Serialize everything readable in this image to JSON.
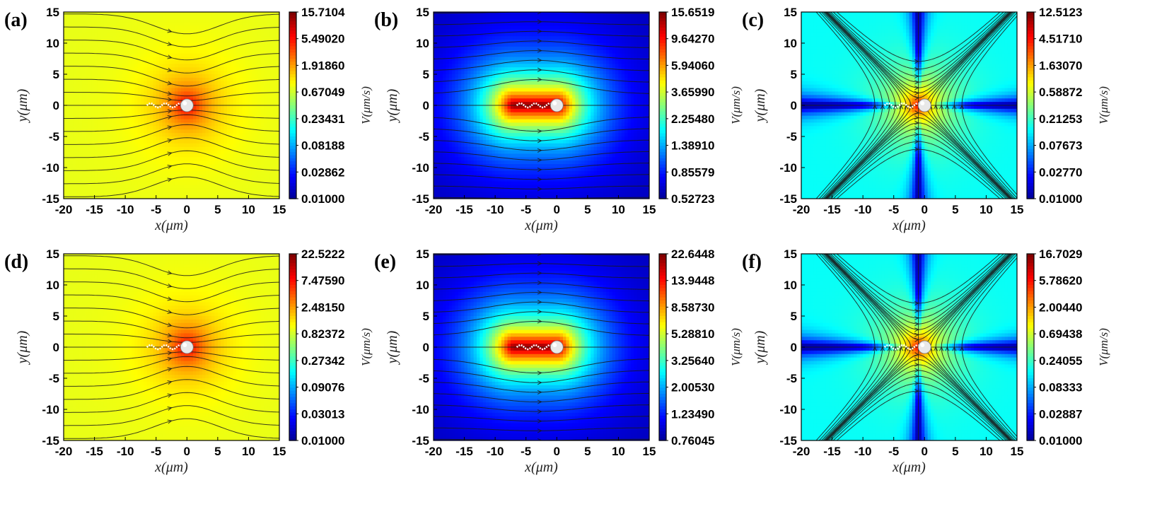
{
  "figure": {
    "colors": {
      "jet": [
        "#00008f",
        "#0000ff",
        "#0080ff",
        "#00ffff",
        "#80ff80",
        "#ffff00",
        "#ff8000",
        "#ff0000",
        "#800000"
      ],
      "streamline": "#1a1a1a",
      "swimmer_body": "#e8e8e8"
    }
  },
  "chart_data": [
    {
      "panel": "(a)",
      "type": "heatmap",
      "field": "stokes-dipole",
      "xlabel": "x(μm)",
      "ylabel": "y(μm)",
      "colorbar_label": "V(μm/s)",
      "xlim": [
        -20,
        15
      ],
      "ylim": [
        -15,
        15
      ],
      "xticks": [
        "-20",
        "-15",
        "-10",
        "-5",
        "0",
        "5",
        "10",
        "15"
      ],
      "yticks": [
        "15",
        "10",
        "5",
        "0",
        "-5",
        "-10",
        "-15"
      ],
      "colorbar_ticks": [
        "15.7104",
        "5.49020",
        "1.91860",
        "0.67049",
        "0.23431",
        "0.08188",
        "0.02862",
        "0.01000"
      ]
    },
    {
      "panel": "(b)",
      "type": "heatmap",
      "field": "elongated-pusher",
      "xlabel": "x(μm)",
      "ylabel": "y(μm)",
      "colorbar_label": "V(μm/s)",
      "xlim": [
        -20,
        15
      ],
      "ylim": [
        -15,
        15
      ],
      "xticks": [
        "-20",
        "-15",
        "-10",
        "-5",
        "0",
        "5",
        "10",
        "15"
      ],
      "yticks": [
        "15",
        "10",
        "5",
        "0",
        "-5",
        "-10",
        "-15"
      ],
      "colorbar_ticks": [
        "15.6519",
        "9.64270",
        "5.94060",
        "3.65990",
        "2.25480",
        "1.38910",
        "0.85579",
        "0.52723"
      ]
    },
    {
      "panel": "(c)",
      "type": "heatmap",
      "field": "quadrupole",
      "xlabel": "x(μm)",
      "ylabel": "y(μm)",
      "colorbar_label": "V(μm/s)",
      "xlim": [
        -20,
        15
      ],
      "ylim": [
        -15,
        15
      ],
      "xticks": [
        "-20",
        "-15",
        "-10",
        "-5",
        "0",
        "5",
        "10",
        "15"
      ],
      "yticks": [
        "15",
        "10",
        "5",
        "0",
        "-5",
        "-10",
        "-15"
      ],
      "colorbar_ticks": [
        "12.5123",
        "4.51710",
        "1.63070",
        "0.58872",
        "0.21253",
        "0.07673",
        "0.02770",
        "0.01000"
      ]
    },
    {
      "panel": "(d)",
      "type": "heatmap",
      "field": "stokes-dipole",
      "xlabel": "x(μm)",
      "ylabel": "y(μm)",
      "colorbar_label": "V(μm/s)",
      "xlim": [
        -20,
        15
      ],
      "ylim": [
        -15,
        15
      ],
      "xticks": [
        "-20",
        "-15",
        "-10",
        "-5",
        "0",
        "5",
        "10",
        "15"
      ],
      "yticks": [
        "15",
        "10",
        "5",
        "0",
        "-5",
        "-10",
        "-15"
      ],
      "colorbar_ticks": [
        "22.5222",
        "7.47590",
        "2.48150",
        "0.82372",
        "0.27342",
        "0.09076",
        "0.03013",
        "0.01000"
      ]
    },
    {
      "panel": "(e)",
      "type": "heatmap",
      "field": "elongated-pusher",
      "xlabel": "x(μm)",
      "ylabel": "y(μm)",
      "colorbar_label": "V(μm/s)",
      "xlim": [
        -20,
        15
      ],
      "ylim": [
        -15,
        15
      ],
      "xticks": [
        "-20",
        "-15",
        "-10",
        "-5",
        "0",
        "5",
        "10",
        "15"
      ],
      "yticks": [
        "15",
        "10",
        "5",
        "0",
        "-5",
        "-10",
        "-15"
      ],
      "colorbar_ticks": [
        "22.6448",
        "13.9448",
        "8.58730",
        "5.28810",
        "3.25640",
        "2.00530",
        "1.23490",
        "0.76045"
      ]
    },
    {
      "panel": "(f)",
      "type": "heatmap",
      "field": "quadrupole",
      "xlabel": "x(μm)",
      "ylabel": "y(μm)",
      "colorbar_label": "V(μm/s)",
      "xlim": [
        -20,
        15
      ],
      "ylim": [
        -15,
        15
      ],
      "xticks": [
        "-20",
        "-15",
        "-10",
        "-5",
        "0",
        "5",
        "10",
        "15"
      ],
      "yticks": [
        "15",
        "10",
        "5",
        "0",
        "-5",
        "-10",
        "-15"
      ],
      "colorbar_ticks": [
        "16.7029",
        "5.78620",
        "2.00440",
        "0.69438",
        "0.24055",
        "0.08333",
        "0.02887",
        "0.01000"
      ]
    }
  ]
}
